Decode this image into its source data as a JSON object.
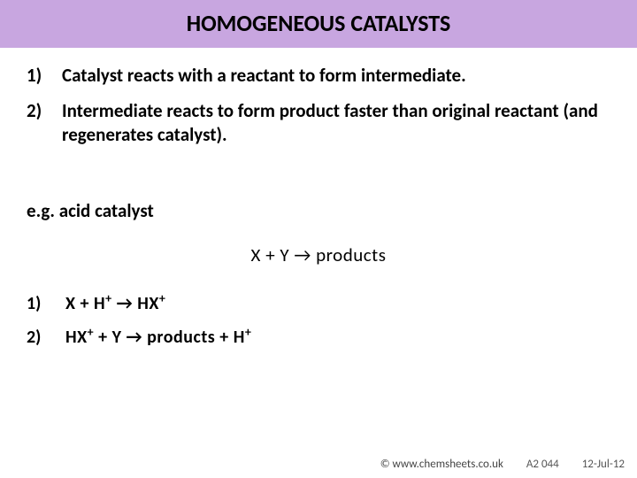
{
  "title": "HOMOGENEOUS CATALYSTS",
  "points": [
    {
      "num": "1)",
      "text": "Catalyst reacts with a reactant to form intermediate."
    },
    {
      "num": "2)",
      "text": "Intermediate reacts to form product faster than original reactant (and regenerates catalyst)."
    }
  ],
  "example_label": "e.g. acid catalyst",
  "main_equation_html": "X  +  Y  →  products",
  "steps": [
    {
      "num": "1)",
      "html": "X  +  H<sup>+</sup>  →  HX<sup>+</sup>"
    },
    {
      "num": "2)",
      "html": "HX<sup>+</sup> +  Y  →  products  +  H<sup>+</sup>"
    }
  ],
  "footer": {
    "copyright": "© www.chemsheets.co.uk",
    "ref": "A2 044",
    "date": "12-Jul-12"
  },
  "colors": {
    "title_bg": "#c8a6e0",
    "page_bg": "#ffffff",
    "text": "#000000",
    "footer_text": "#555555"
  }
}
